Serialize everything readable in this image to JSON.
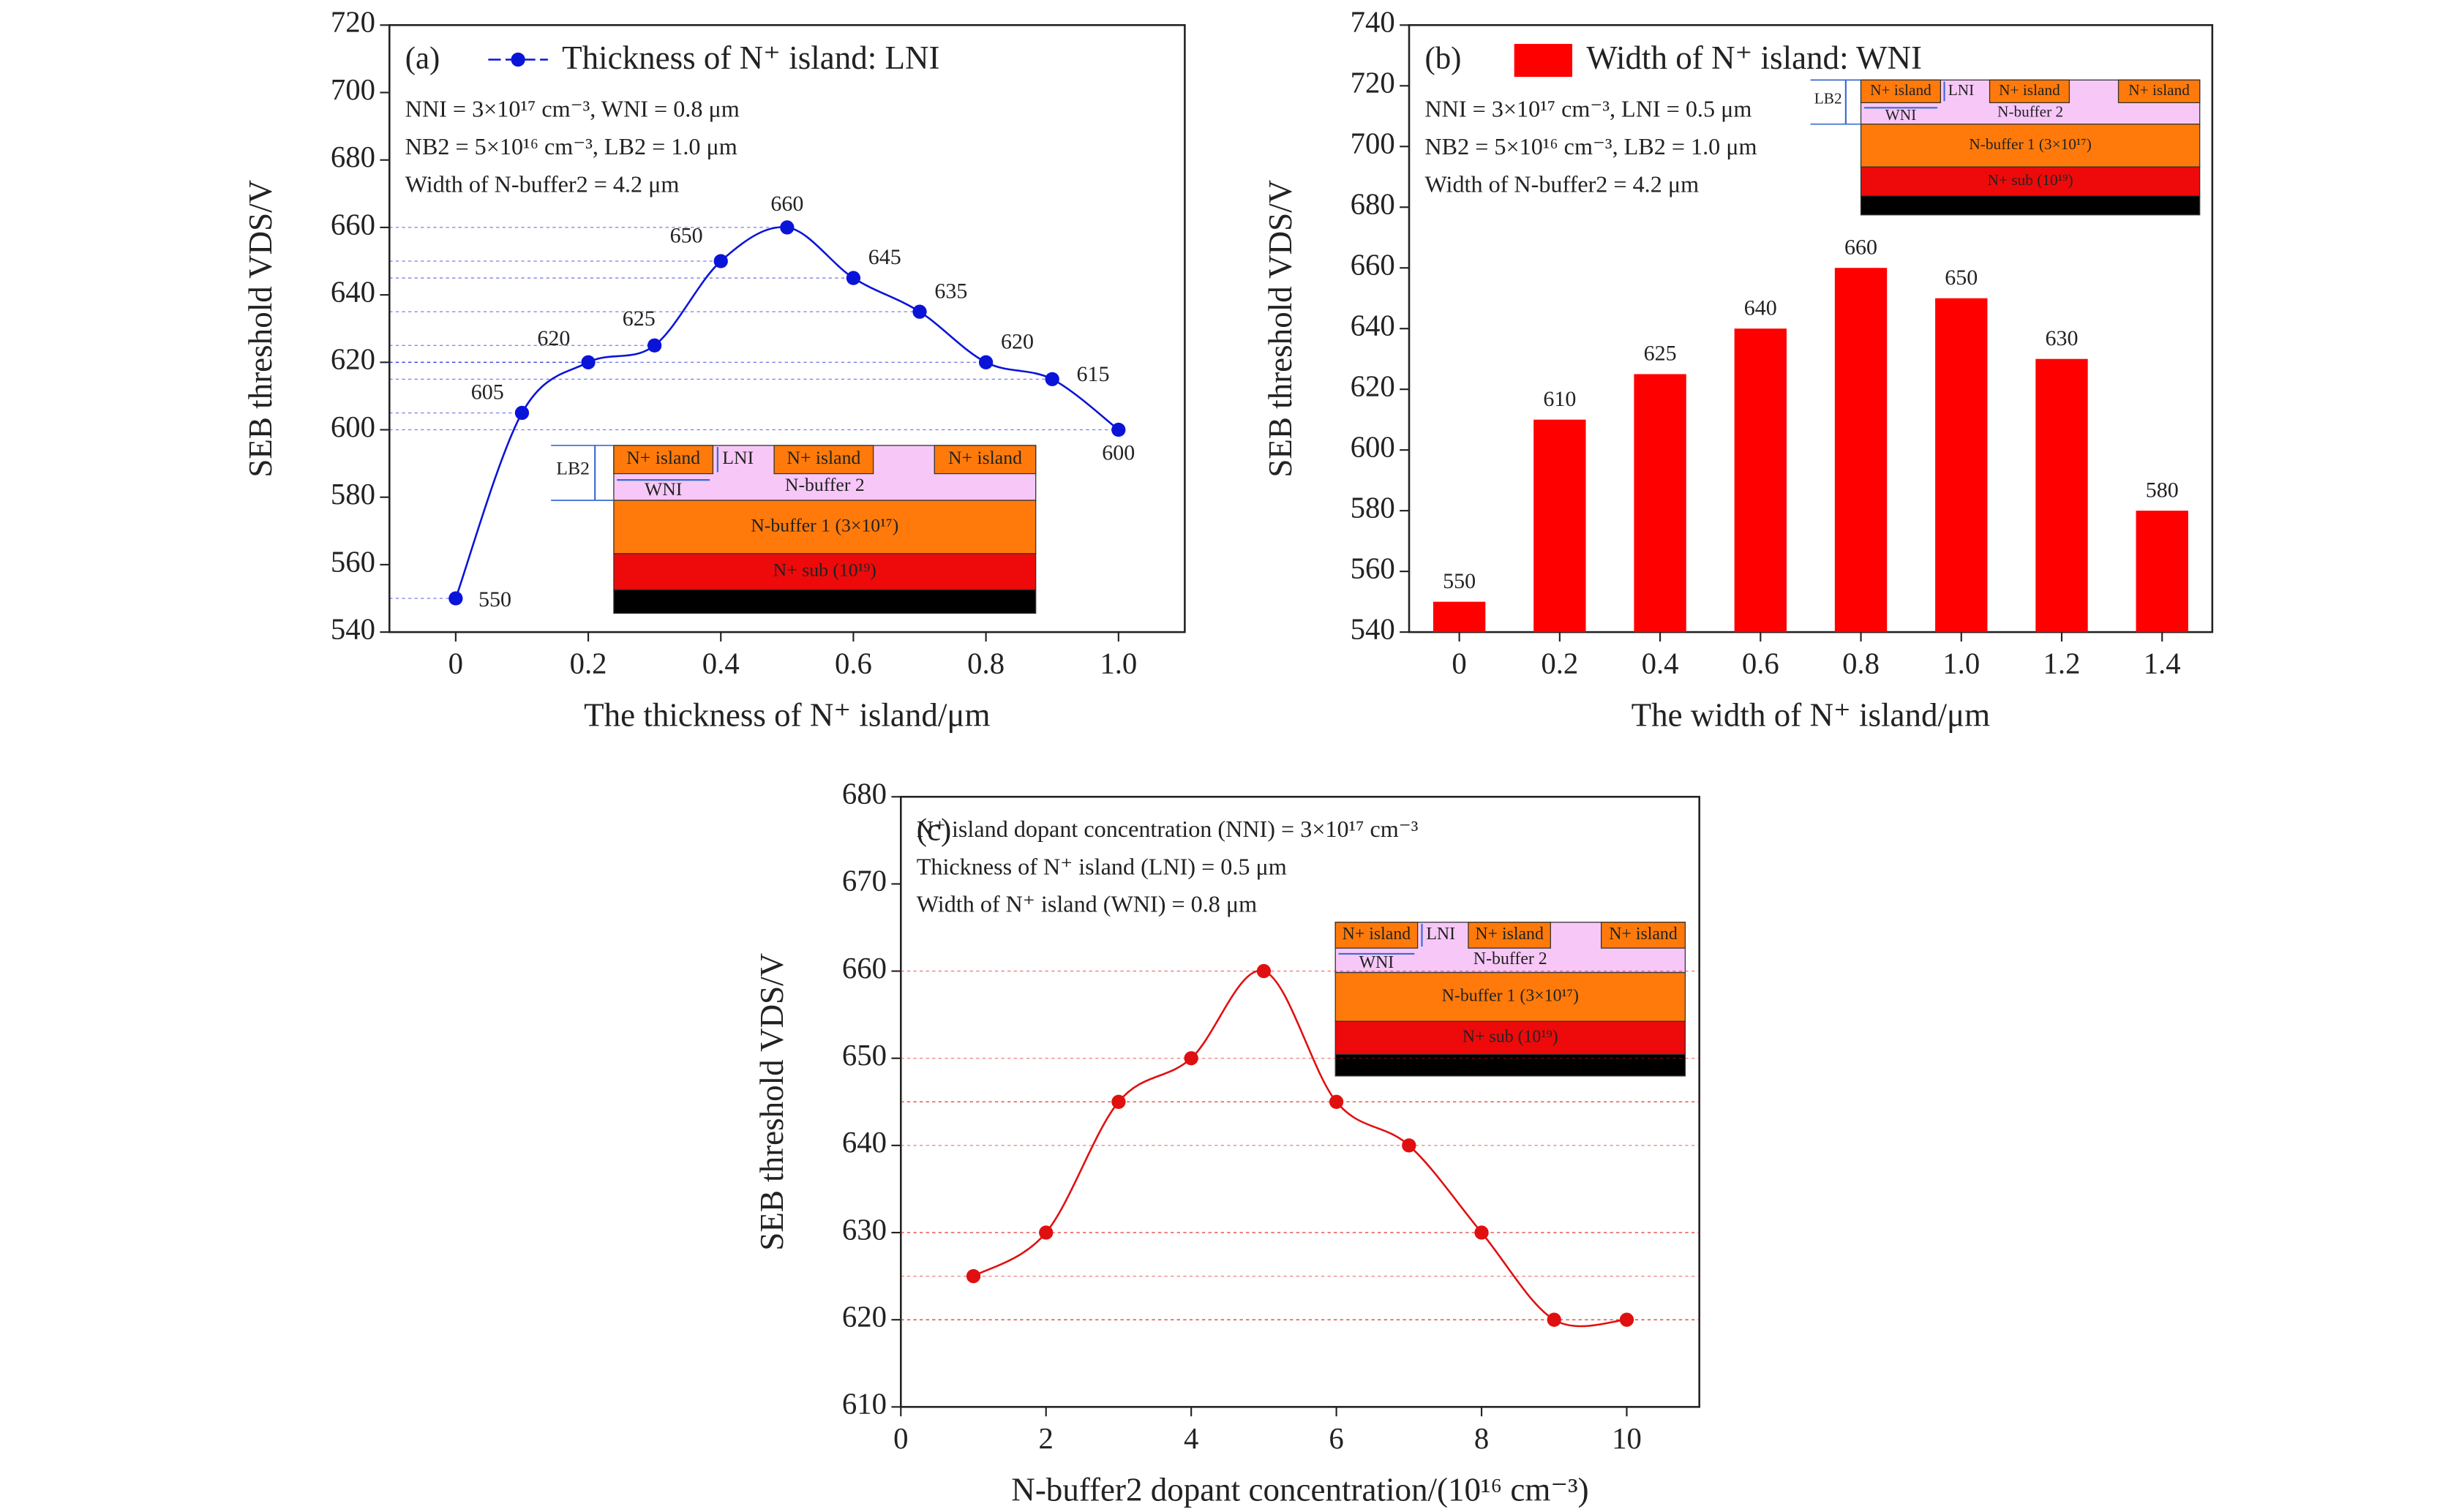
{
  "chart_data": [
    {
      "type": "line",
      "panel": "(a)",
      "legend": "Thickness of N⁺ island: LNI",
      "color": "#0a14d8",
      "x_label": "The thickness of N⁺ island/μm",
      "y_label": "SEB threshold VDS/V",
      "annotations": [
        "NNI = 3×10¹⁷ cm⁻³, WNI = 0.8 μm",
        "NB2 = 5×10¹⁶ cm⁻³, LB2 = 1.0 μm",
        "Width of N-buffer2 = 4.2 μm"
      ],
      "x": [
        0,
        0.1,
        0.2,
        0.3,
        0.4,
        0.5,
        0.6,
        0.7,
        0.8,
        0.9,
        1
      ],
      "series": [
        {
          "name": "Thickness of N⁺ island: LNI",
          "color": "#0a14d8",
          "values": [
            550,
            605,
            620,
            625,
            650,
            660,
            645,
            635,
            620,
            615,
            600
          ]
        }
      ],
      "xlim": [
        -0.1,
        1.1
      ],
      "xticks": [
        0,
        0.2,
        0.4,
        0.6,
        0.8,
        {
          "value": 1,
          "label": "1.0"
        }
      ],
      "ylim": [
        540,
        720
      ],
      "yticks": [
        540,
        560,
        580,
        600,
        620,
        640,
        660,
        680,
        700,
        720
      ]
    },
    {
      "type": "bar",
      "panel": "(b)",
      "legend": "Width of N⁺ island: WNI",
      "color": "#ff0000",
      "x_label": "The width of N⁺ island/μm",
      "y_label": "SEB threshold VDS/V",
      "annotations": [
        "NNI = 3×10¹⁷ cm⁻³, LNI = 0.5 μm",
        "NB2 = 5×10¹⁶ cm⁻³, LB2 = 1.0 μm",
        "Width of N-buffer2 = 4.2 μm"
      ],
      "categories": [
        "0",
        "0.2",
        "0.4",
        "0.6",
        "0.8",
        "1.0",
        "1.2",
        "1.4"
      ],
      "values": [
        550,
        610,
        625,
        640,
        660,
        650,
        630,
        580
      ],
      "ylim": [
        540,
        740
      ],
      "yticks": [
        540,
        560,
        580,
        600,
        620,
        640,
        660,
        680,
        700,
        720,
        740
      ]
    },
    {
      "type": "line",
      "panel": "(c)",
      "color": "#e01010",
      "x_label": "N-buffer2 dopant concentration/(10¹⁶ cm⁻³)",
      "y_label": "SEB threshold VDS/V",
      "annotations": [
        "N⁺ island dopant concentration (NNI) = 3×10¹⁷ cm⁻³",
        "Thickness of N⁺ island (LNI) = 0.5 μm",
        "Width of N⁺ island (WNI) = 0.8 μm"
      ],
      "x": [
        1,
        2,
        3,
        4,
        5,
        6,
        7,
        8,
        9,
        10
      ],
      "series": [
        {
          "name": "",
          "color": "#e01010",
          "values": [
            625,
            630,
            645,
            650,
            660,
            645,
            640,
            630,
            620,
            620
          ]
        }
      ],
      "xlim": [
        0,
        11
      ],
      "xticks": [
        0,
        2,
        4,
        6,
        8,
        10
      ],
      "ylim": [
        610,
        680
      ],
      "yticks": [
        610,
        620,
        630,
        640,
        650,
        660,
        670,
        680
      ]
    }
  ],
  "inset": {
    "island": "N+ island",
    "buffer2": "N-buffer 2",
    "buffer1": "N-buffer 1 (3×10¹⁷)",
    "sub": "N+ sub (10¹⁹)",
    "lb2": "LB2",
    "lni": "LNI",
    "wni": "WNI"
  }
}
